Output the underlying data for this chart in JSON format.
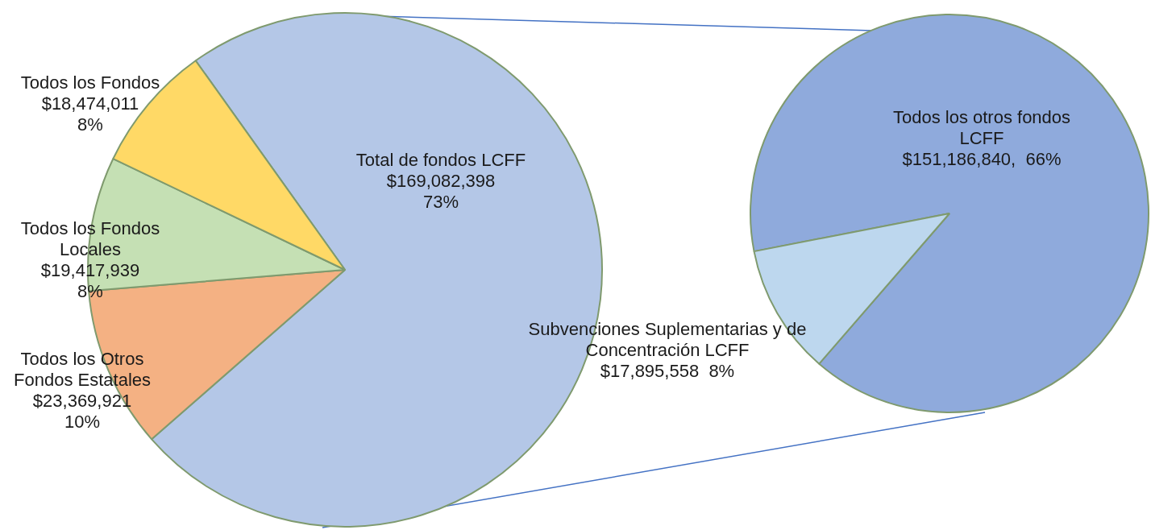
{
  "chart_data": [
    {
      "type": "pie",
      "categories": [
        "Total de fondos LCFF",
        "Todos los Otros Fondos Estatales",
        "Todos los Fondos Locales",
        "Todos los Fondos"
      ],
      "values": [
        169082398,
        23369921,
        19417939,
        18474011
      ],
      "value_labels": [
        "$169,082,398\n73%",
        "$23,369,921\n10%",
        "$19,417,939\n8%",
        "$18,474,011\n8%"
      ],
      "colors": [
        "#b4c7e7",
        "#f4b183",
        "#c5e0b4",
        "#ffd966"
      ]
    },
    {
      "type": "pie",
      "categories": [
        "Todos los otros fondos LCFF",
        "Subvenciones Suplementarias y de Concentración LCFF"
      ],
      "values": [
        151186840,
        17895558
      ],
      "value_labels": [
        "$151,186,840,  66%",
        "$17,895,558  8%"
      ],
      "colors": [
        "#8faadc",
        "#bdd7ee"
      ]
    }
  ]
}
